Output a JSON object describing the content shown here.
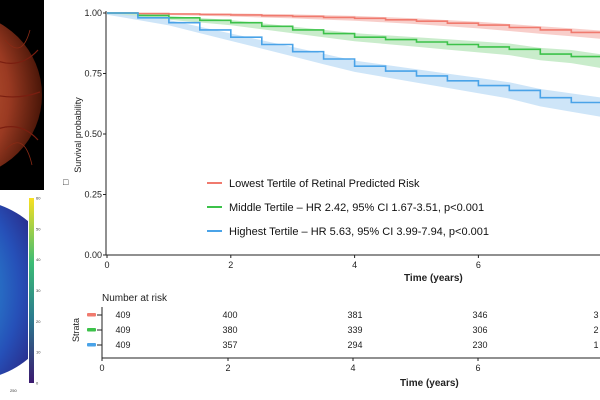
{
  "colors": {
    "lowest": "#f07a6e",
    "middle": "#3cc24a",
    "highest": "#4aa3e8",
    "lowest_band": "#f7c6c1",
    "middle_band": "#bfe9c2",
    "highest_band": "#c6e0f7",
    "axis": "#222222"
  },
  "side_panels": {
    "heatmap_colorbar_ticks": [
      "60",
      "50",
      "40",
      "30",
      "20",
      "10",
      "0"
    ],
    "heatmap_axis_tick": "250"
  },
  "chart_data": {
    "type": "line",
    "ylabel": "Survival probability",
    "xlabel": "Time (years)",
    "xlim": [
      0,
      8
    ],
    "ylim": [
      0,
      1
    ],
    "x_ticks": [
      "0",
      "2",
      "4",
      "6"
    ],
    "y_ticks": [
      "0.00",
      "0.25",
      "0.50",
      "0.75",
      "1.00"
    ],
    "legend": [
      "Lowest Tertile of Retinal Predicted Risk",
      "Middle Tertile – HR 2.42, 95% CI 1.67-3.51,  p<0.001",
      "Highest Tertile – HR 5.63, 95% CI 3.99-7.94,  p<0.001"
    ],
    "legend_marker": "□",
    "series": [
      {
        "key": "lowest",
        "name": "Lowest Tertile of Retinal Predicted Risk",
        "x": [
          0,
          0.5,
          1,
          1.5,
          2,
          2.5,
          3,
          3.5,
          4,
          4.5,
          5,
          5.5,
          6,
          6.5,
          7,
          7.5,
          8
        ],
        "y": [
          1.0,
          0.998,
          0.996,
          0.994,
          0.992,
          0.989,
          0.986,
          0.982,
          0.978,
          0.972,
          0.966,
          0.958,
          0.95,
          0.94,
          0.93,
          0.92,
          0.91
        ],
        "band": 0.015
      },
      {
        "key": "middle",
        "name": "Middle Tertile – HR 2.42, 95% CI 1.67-3.51,  p<0.001",
        "x": [
          0,
          0.5,
          1,
          1.5,
          2,
          2.5,
          3,
          3.5,
          4,
          4.5,
          5,
          5.5,
          6,
          6.5,
          7,
          7.5,
          8
        ],
        "y": [
          1.0,
          0.99,
          0.98,
          0.97,
          0.96,
          0.945,
          0.93,
          0.915,
          0.9,
          0.89,
          0.88,
          0.87,
          0.86,
          0.85,
          0.83,
          0.82,
          0.8
        ],
        "band": 0.025
      },
      {
        "key": "highest",
        "name": "Highest Tertile – HR 5.63, 95% CI 3.99-7.94,  p<0.001",
        "x": [
          0,
          0.5,
          1,
          1.5,
          2,
          2.5,
          3,
          3.5,
          4,
          4.5,
          5,
          5.5,
          6,
          6.5,
          7,
          7.5,
          8
        ],
        "y": [
          1.0,
          0.98,
          0.96,
          0.93,
          0.9,
          0.87,
          0.84,
          0.81,
          0.78,
          0.76,
          0.74,
          0.72,
          0.7,
          0.68,
          0.65,
          0.63,
          0.61
        ],
        "band": 0.035
      }
    ]
  },
  "risk_table": {
    "title": "Number at risk",
    "strata_label": "Strata",
    "xlabel": "Time (years)",
    "x_ticks": [
      "0",
      "2",
      "4",
      "6"
    ],
    "rows": [
      {
        "key": "lowest",
        "values": [
          "409",
          "400",
          "381",
          "346",
          "3"
        ]
      },
      {
        "key": "middle",
        "values": [
          "409",
          "380",
          "339",
          "306",
          "2"
        ]
      },
      {
        "key": "highest",
        "values": [
          "409",
          "357",
          "294",
          "230",
          "1"
        ]
      }
    ]
  }
}
